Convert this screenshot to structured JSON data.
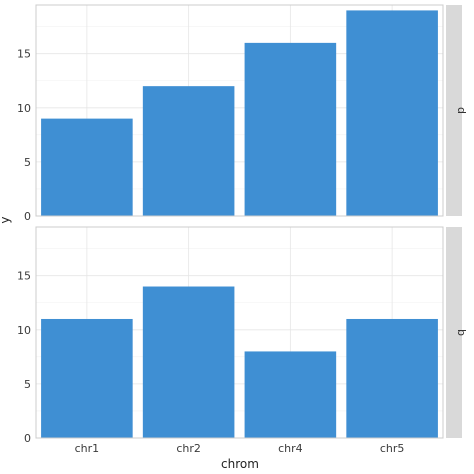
{
  "chart_data": {
    "type": "bar",
    "facet_layout": "rows",
    "xlabel": "chrom",
    "ylabel": "y",
    "ylim": [
      0,
      19.5
    ],
    "yticks": [
      0,
      5,
      10,
      15
    ],
    "grid": true,
    "bar_color": "#3f8fd3",
    "panels": [
      {
        "strip": "d",
        "categories": [
          "chr1",
          "chr2",
          "chr4",
          "chr5"
        ],
        "values": [
          9,
          12,
          16,
          19
        ]
      },
      {
        "strip": "b",
        "categories": [
          "chr1",
          "chr2",
          "chr4",
          "chr5"
        ],
        "values": [
          11,
          14,
          8,
          11
        ]
      }
    ]
  }
}
